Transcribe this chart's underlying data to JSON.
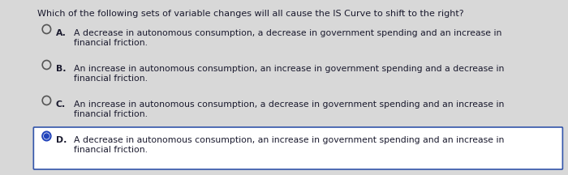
{
  "question": "Which of the following sets of variable changes will all cause the IS Curve to shift to the right?",
  "options": [
    {
      "label": "A.",
      "line1": "A decrease in autonomous consumption, a decrease in government spending and an increase in",
      "line2": "financial friction.",
      "selected": false
    },
    {
      "label": "B.",
      "line1": "An increase in autonomous consumption, an increase in government spending and a decrease in",
      "line2": "financial friction.",
      "selected": false
    },
    {
      "label": "C.",
      "line1": "An increase in autonomous consumption, a decrease in government spending and an increase in",
      "line2": "financial friction.",
      "selected": false
    },
    {
      "label": "D.",
      "line1": "A decrease in autonomous consumption, an increase in government spending and an increase in",
      "line2": "financial friction.",
      "selected": true
    }
  ],
  "bg_color": "#d8d8d8",
  "content_bg": "#f0efec",
  "selected_bg": "#ffffff",
  "selected_border": "#3355aa",
  "text_color": "#1a1a2e",
  "question_fontsize": 8.0,
  "option_fontsize": 7.8,
  "radio_color_empty": "#555555",
  "radio_color_filled": "#2244bb",
  "radio_fill_color": "#2244bb"
}
